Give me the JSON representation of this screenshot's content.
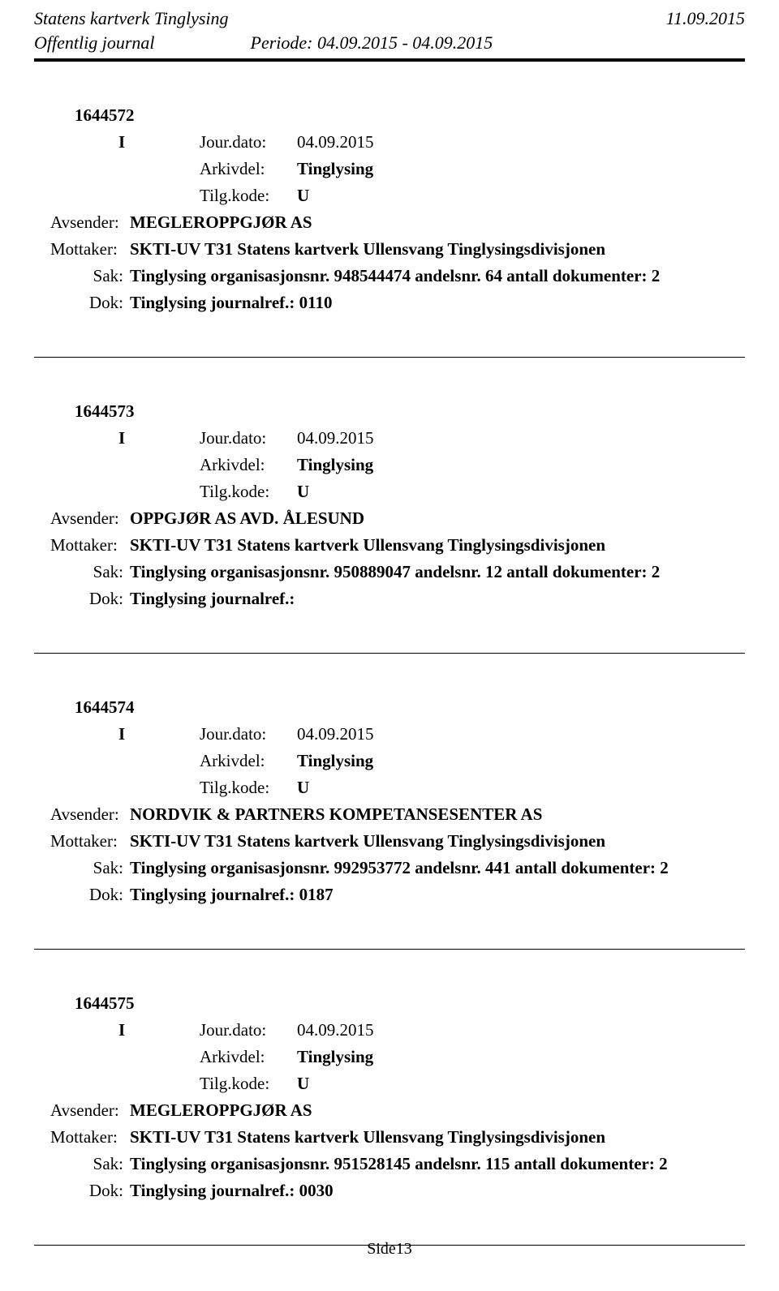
{
  "header": {
    "org": "Statens kartverk Tinglysing",
    "date": "11.09.2015",
    "journal": "Offentlig journal",
    "periode_label": "Periode: 04.09.2015 - 04.09.2015"
  },
  "entries": [
    {
      "id": "1644572",
      "type": "I",
      "jour_label": "Jour.dato:",
      "jour_date": "04.09.2015",
      "arkivdel_label": "Arkivdel:",
      "arkivdel_value": "Tinglysing",
      "tilg_label": "Tilg.kode:",
      "tilg_value": "U",
      "avsender_label": "Avsender:",
      "avsender_value": "MEGLEROPPGJØR AS",
      "mottaker_label": "Mottaker:",
      "mottaker_value": "SKTI-UV T31 Statens kartverk Ullensvang Tinglysingsdivisjonen",
      "sak_label": "Sak:",
      "sak_value": "Tinglysing organisasjonsnr. 948544474 andelsnr. 64 antall dokumenter: 2",
      "dok_label": "Dok:",
      "dok_value": "Tinglysing journalref.: 0110"
    },
    {
      "id": "1644573",
      "type": "I",
      "jour_label": "Jour.dato:",
      "jour_date": "04.09.2015",
      "arkivdel_label": "Arkivdel:",
      "arkivdel_value": "Tinglysing",
      "tilg_label": "Tilg.kode:",
      "tilg_value": "U",
      "avsender_label": "Avsender:",
      "avsender_value": "OPPGJØR AS AVD. ÅLESUND",
      "mottaker_label": "Mottaker:",
      "mottaker_value": "SKTI-UV T31 Statens kartverk Ullensvang Tinglysingsdivisjonen",
      "sak_label": "Sak:",
      "sak_value": "Tinglysing organisasjonsnr. 950889047 andelsnr. 12 antall dokumenter: 2",
      "dok_label": "Dok:",
      "dok_value": "Tinglysing journalref.:"
    },
    {
      "id": "1644574",
      "type": "I",
      "jour_label": "Jour.dato:",
      "jour_date": "04.09.2015",
      "arkivdel_label": "Arkivdel:",
      "arkivdel_value": "Tinglysing",
      "tilg_label": "Tilg.kode:",
      "tilg_value": "U",
      "avsender_label": "Avsender:",
      "avsender_value": "NORDVIK & PARTNERS KOMPETANSESENTER AS",
      "mottaker_label": "Mottaker:",
      "mottaker_value": "SKTI-UV T31 Statens kartverk Ullensvang Tinglysingsdivisjonen",
      "sak_label": "Sak:",
      "sak_value": "Tinglysing organisasjonsnr. 992953772 andelsnr. 441 antall dokumenter: 2",
      "dok_label": "Dok:",
      "dok_value": "Tinglysing journalref.: 0187"
    },
    {
      "id": "1644575",
      "type": "I",
      "jour_label": "Jour.dato:",
      "jour_date": "04.09.2015",
      "arkivdel_label": "Arkivdel:",
      "arkivdel_value": "Tinglysing",
      "tilg_label": "Tilg.kode:",
      "tilg_value": "U",
      "avsender_label": "Avsender:",
      "avsender_value": "MEGLEROPPGJØR AS",
      "mottaker_label": "Mottaker:",
      "mottaker_value": "SKTI-UV T31 Statens kartverk Ullensvang Tinglysingsdivisjonen",
      "sak_label": "Sak:",
      "sak_value": "Tinglysing organisasjonsnr. 951528145 andelsnr. 115 antall dokumenter: 2",
      "dok_label": "Dok:",
      "dok_value": "Tinglysing journalref.: 0030"
    }
  ],
  "footer": {
    "page": "Side13"
  }
}
